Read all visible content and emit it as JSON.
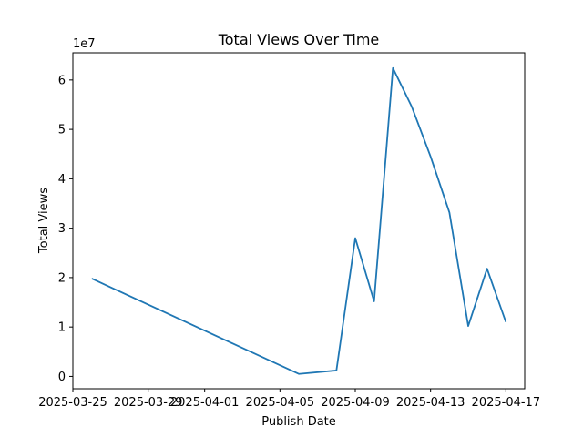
{
  "chart_data": {
    "type": "line",
    "title": "Total Views Over Time",
    "xlabel": "Publish Date",
    "ylabel": "Total Views",
    "y_multiplier_label": "1e7",
    "x_tick_labels": [
      "2025-03-25",
      "2025-03-29",
      "2025-04-01",
      "2025-04-05",
      "2025-04-09",
      "2025-04-13",
      "2025-04-17"
    ],
    "x_tick_dates": [
      "2025-03-25",
      "2025-03-29",
      "2025-04-01",
      "2025-04-05",
      "2025-04-09",
      "2025-04-13",
      "2025-04-17"
    ],
    "y_ticks": [
      0,
      10000000,
      20000000,
      30000000,
      40000000,
      50000000,
      60000000
    ],
    "y_tick_labels": [
      "0",
      "1",
      "2",
      "3",
      "4",
      "5",
      "6"
    ],
    "series": [
      {
        "color": "#1f77b4",
        "points": [
          {
            "x": "2025-03-26",
            "y": 19800000
          },
          {
            "x": "2025-04-06",
            "y": 500000
          },
          {
            "x": "2025-04-08",
            "y": 1200000
          },
          {
            "x": "2025-04-09",
            "y": 28000000
          },
          {
            "x": "2025-04-10",
            "y": 15200000
          },
          {
            "x": "2025-04-11",
            "y": 62400000
          },
          {
            "x": "2025-04-12",
            "y": 54600000
          },
          {
            "x": "2025-04-13",
            "y": 44500000
          },
          {
            "x": "2025-04-14",
            "y": 33200000
          },
          {
            "x": "2025-04-15",
            "y": 10200000
          },
          {
            "x": "2025-04-16",
            "y": 21800000
          },
          {
            "x": "2025-04-17",
            "y": 11000000
          }
        ]
      }
    ],
    "xlim": [
      "2025-03-25",
      "2025-04-18"
    ],
    "ylim": [
      -2500000,
      65500000
    ],
    "grid": false
  }
}
